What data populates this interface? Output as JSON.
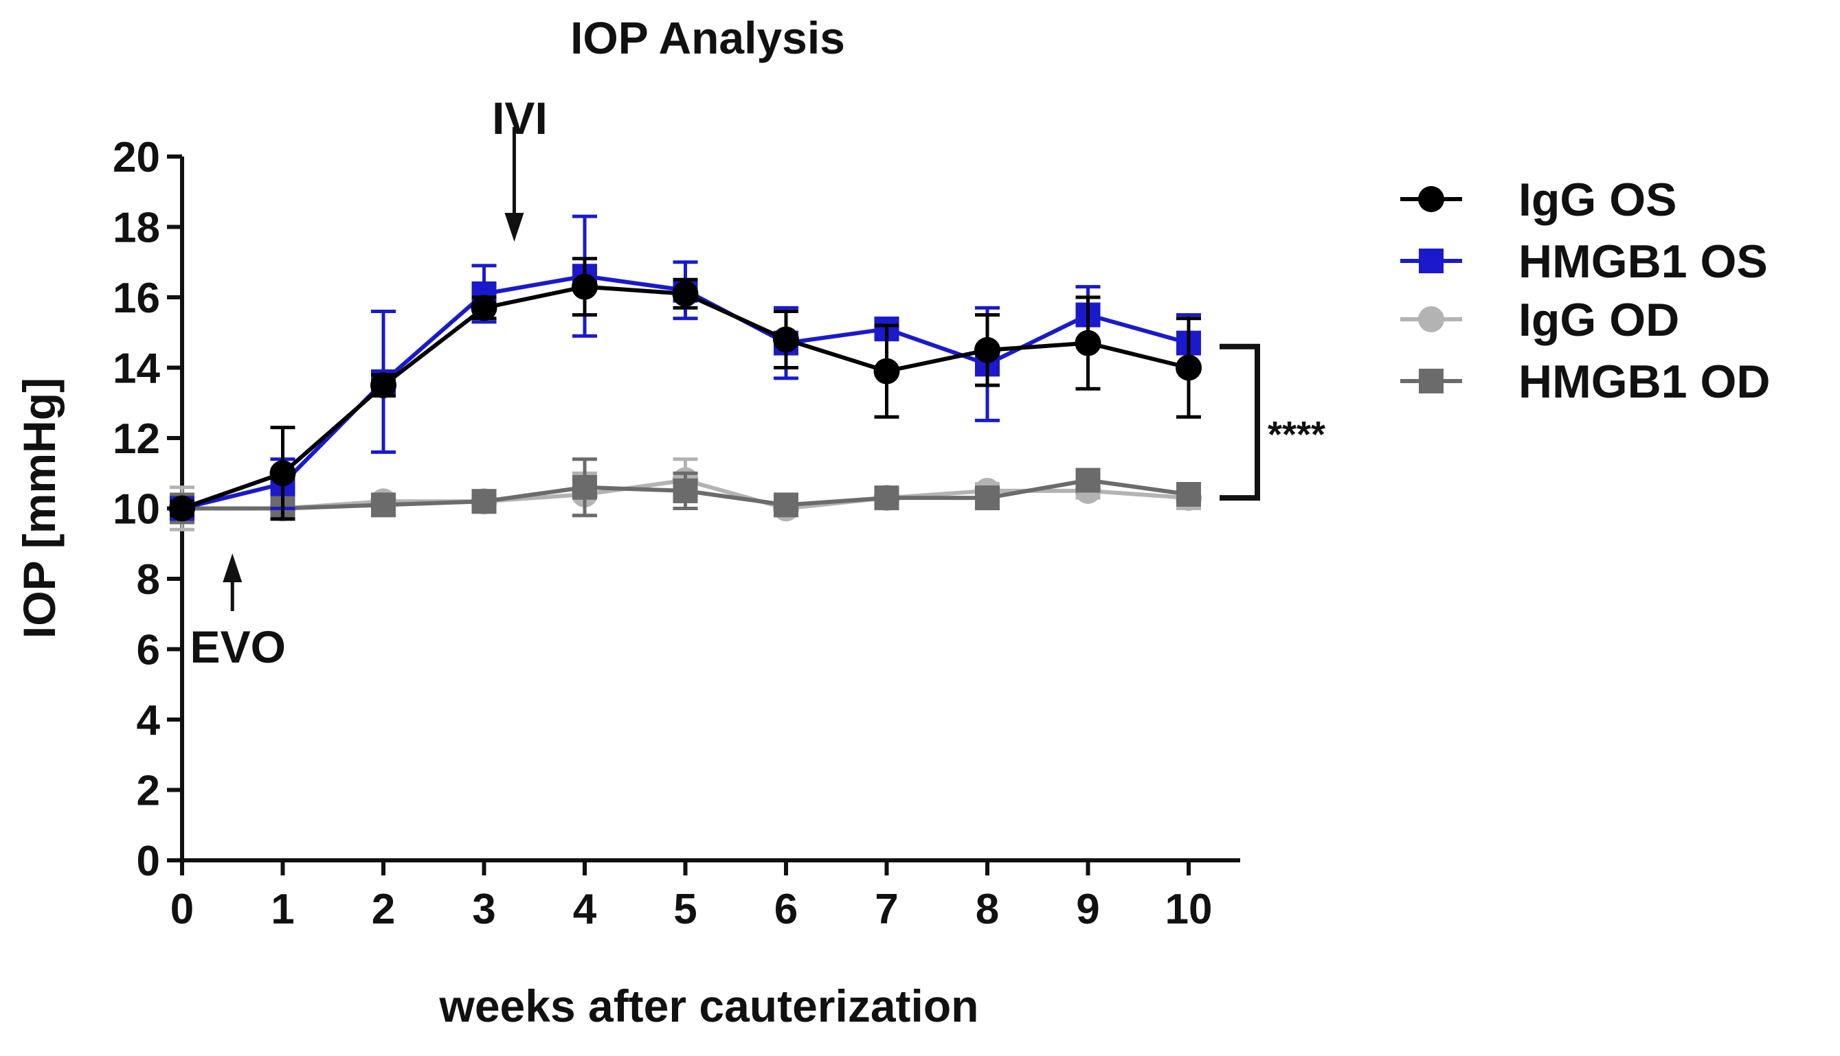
{
  "chart_data": {
    "type": "line",
    "title": "IOP Analysis",
    "xlabel": "weeks after cauterization",
    "ylabel": "IOP [mmHg]",
    "xlim": [
      0,
      10
    ],
    "ylim": [
      0,
      20
    ],
    "x_ticks": [
      0,
      1,
      2,
      3,
      4,
      5,
      6,
      7,
      8,
      9,
      10
    ],
    "y_ticks": [
      0,
      2,
      4,
      6,
      8,
      10,
      12,
      14,
      16,
      18,
      20
    ],
    "x": [
      0,
      1,
      2,
      3,
      4,
      5,
      6,
      7,
      8,
      9,
      10
    ],
    "grid": false,
    "legend_position": "right",
    "series": [
      {
        "name": "IgG OD",
        "marker": "circle",
        "color": "#b3b3b3",
        "values": [
          10.0,
          10.0,
          10.2,
          10.2,
          10.4,
          10.8,
          10.0,
          10.3,
          10.5,
          10.5,
          10.3
        ],
        "errors": [
          0.6,
          0.2,
          0.2,
          0.3,
          0.6,
          0.6,
          0.2,
          0.2,
          0.2,
          0.2,
          0.3
        ]
      },
      {
        "name": "HMGB1 OD",
        "marker": "square",
        "color": "#6b6b6b",
        "values": [
          10.0,
          10.0,
          10.1,
          10.2,
          10.6,
          10.5,
          10.1,
          10.3,
          10.3,
          10.8,
          10.4
        ],
        "errors": [
          0.4,
          0.2,
          0.2,
          0.3,
          0.8,
          0.5,
          0.2,
          0.2,
          0.3,
          0.3,
          0.3
        ]
      },
      {
        "name": "HMGB1 OS",
        "marker": "square",
        "color": "#1a1acc",
        "values": [
          10.0,
          10.7,
          13.6,
          16.1,
          16.6,
          16.2,
          14.7,
          15.1,
          14.1,
          15.5,
          14.7
        ],
        "errors": [
          0.2,
          0.7,
          2.0,
          0.8,
          1.7,
          0.8,
          1.0,
          0.3,
          1.6,
          0.8,
          0.8
        ]
      },
      {
        "name": "IgG OS",
        "marker": "circle",
        "color": "#000000",
        "values": [
          10.0,
          11.0,
          13.5,
          15.7,
          16.3,
          16.1,
          14.8,
          13.9,
          14.5,
          14.7,
          14.0
        ],
        "errors": [
          0.2,
          1.3,
          0.3,
          0.3,
          0.8,
          0.4,
          0.8,
          1.3,
          1.0,
          1.3,
          1.4
        ]
      }
    ],
    "legend_order": [
      "IgG OS",
      "HMGB1 OS",
      "IgG OD",
      "HMGB1 OD"
    ],
    "annotations": [
      {
        "id": "ivi",
        "text": "IVI",
        "x": 3.3,
        "arrow": "down"
      },
      {
        "id": "evo",
        "text": "EVO",
        "x": 0.5,
        "arrow": "up"
      },
      {
        "id": "significance",
        "text": "****",
        "y_range": [
          10.3,
          14.6
        ]
      }
    ]
  }
}
